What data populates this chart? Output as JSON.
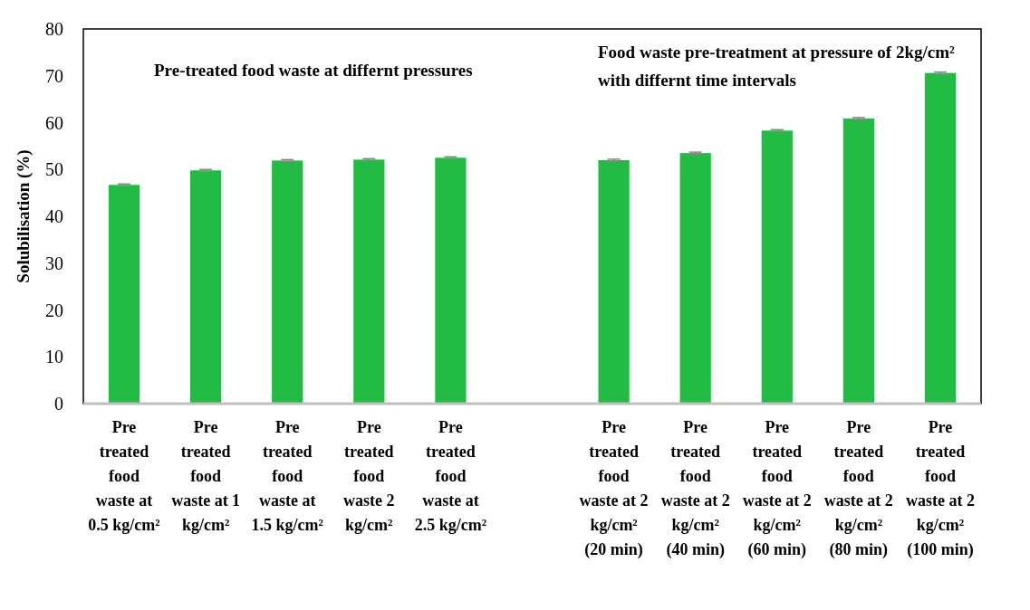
{
  "chart_data": {
    "type": "bar",
    "ylabel": "Solubilisation (%)",
    "categories": [
      "Pre treated food waste at 0.5 kg/cm²",
      "Pre treated food waste at 1 kg/cm²",
      "Pre treated food waste at 1.5 kg/cm²",
      "Pre treated food waste 2 kg/cm²",
      "Pre treated food waste at 2.5 kg/cm²",
      null,
      "Pre treated food waste at 2 kg/cm² (20 min)",
      "Pre treated food waste at 2 kg/cm² (40 min)",
      "Pre treated food waste at 2 kg/cm² (60 min)",
      "Pre treated food waste at 2 kg/cm² (80 min)",
      "Pre treated food waste at 2 kg/cm² (100 min)"
    ],
    "values": [
      46.7,
      49.8,
      51.9,
      52.1,
      52.5,
      null,
      52.0,
      53.5,
      58.3,
      60.9,
      70.6
    ],
    "errors": [
      0.2,
      0.2,
      0.2,
      0.2,
      0.2,
      null,
      0.2,
      0.2,
      0.2,
      0.2,
      0.2
    ],
    "color": "#22bb44",
    "ylim": [
      0,
      80
    ],
    "yticks": [
      0,
      10,
      20,
      30,
      40,
      50,
      60,
      70,
      80
    ],
    "grid": false,
    "annotations": [
      "Pre-treated food waste at differnt pressures",
      "Food waste pre-treatment  at pressure of 2kg/cm² with differnt time intervals"
    ]
  }
}
